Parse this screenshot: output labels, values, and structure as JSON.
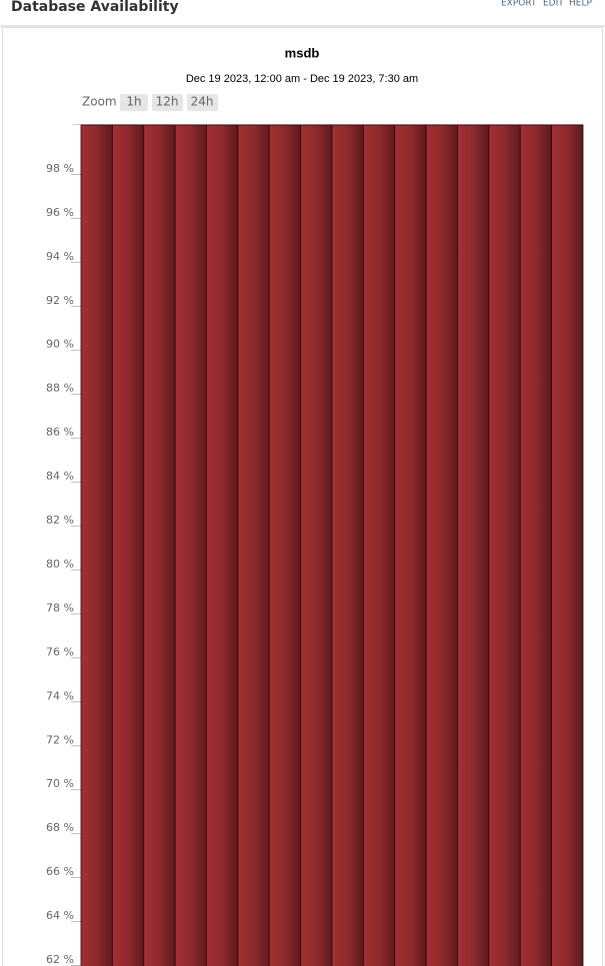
{
  "header": {
    "title": "Database Availability",
    "links": [
      "EXPORT",
      "EDIT",
      "HELP"
    ]
  },
  "chart_data": {
    "type": "bar",
    "title": "msdb",
    "subtitle": "Dec 19 2023, 12:00 am - Dec 19 2023, 7:30 am",
    "zoom_label": "Zoom",
    "zoom_buttons": [
      "1h",
      "12h",
      "24h"
    ],
    "categories": [
      null,
      null,
      null,
      null,
      null,
      null,
      null,
      null,
      null,
      null,
      null,
      null,
      null,
      null,
      null,
      null
    ],
    "values": [
      100,
      100,
      100,
      100,
      100,
      100,
      100,
      100,
      100,
      100,
      100,
      100,
      100,
      100,
      100,
      100
    ],
    "color": "#9b2d30",
    "ylim": [
      61.7,
      100
    ],
    "yticks": [
      {
        "value": 62,
        "label": "62 %"
      },
      {
        "value": 64,
        "label": "64 %"
      },
      {
        "value": 66,
        "label": "66 %"
      },
      {
        "value": 68,
        "label": "68 %"
      },
      {
        "value": 70,
        "label": "70 %"
      },
      {
        "value": 72,
        "label": "72 %"
      },
      {
        "value": 74,
        "label": "74 %"
      },
      {
        "value": 76,
        "label": "76 %"
      },
      {
        "value": 78,
        "label": "78 %"
      },
      {
        "value": 80,
        "label": "80 %"
      },
      {
        "value": 82,
        "label": "82 %"
      },
      {
        "value": 84,
        "label": "84 %"
      },
      {
        "value": 86,
        "label": "86 %"
      },
      {
        "value": 88,
        "label": "88 %"
      },
      {
        "value": 90,
        "label": "90 %"
      },
      {
        "value": 92,
        "label": "92 %"
      },
      {
        "value": 94,
        "label": "94 %"
      },
      {
        "value": 96,
        "label": "96 %"
      },
      {
        "value": 98,
        "label": "98 %"
      }
    ],
    "grid": false
  }
}
